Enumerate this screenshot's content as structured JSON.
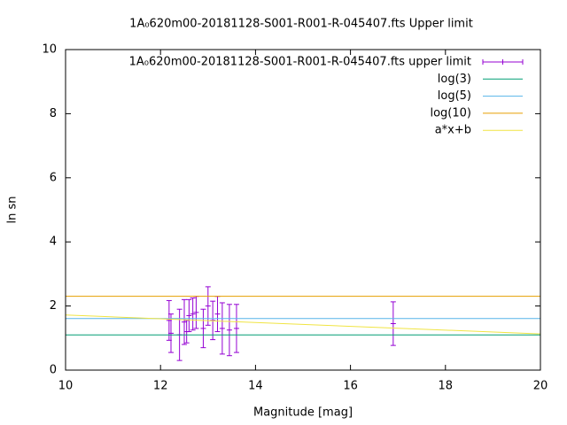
{
  "chart_data": {
    "type": "errorbar",
    "title": "1A₀620m00-20181128-S001-R001-R-045407.fts Upper limit",
    "xlabel": "Magnitude [mag]",
    "ylabel": "ln sn",
    "xlim": [
      10,
      20
    ],
    "ylim": [
      0,
      10
    ],
    "xticks": [
      10,
      12,
      14,
      16,
      18,
      20
    ],
    "yticks": [
      0,
      2,
      4,
      6,
      8,
      10
    ],
    "legend": "top right",
    "series": [
      {
        "name": "1A₀620m00-20181128-S001-R001-R-045407.fts upper limit",
        "color": "#9400d3",
        "type": "errorbar",
        "x": [
          12.18,
          12.22,
          12.4,
          12.5,
          12.55,
          12.6,
          12.68,
          12.75,
          12.9,
          13.0,
          13.1,
          13.2,
          13.3,
          13.45,
          13.6,
          16.9
        ],
        "values": [
          1.55,
          1.15,
          1.1,
          1.5,
          1.2,
          1.7,
          1.75,
          1.8,
          1.3,
          2.0,
          1.55,
          1.75,
          1.3,
          1.25,
          1.3,
          1.45
        ],
        "errors": [
          0.62,
          0.6,
          0.8,
          0.7,
          0.35,
          0.5,
          0.5,
          0.5,
          0.6,
          0.6,
          0.6,
          0.55,
          0.8,
          0.8,
          0.75,
          0.68
        ]
      },
      {
        "name": "log(3)",
        "color": "#009e73",
        "type": "line",
        "x": [
          10,
          20
        ],
        "values": [
          1.0986,
          1.0986
        ]
      },
      {
        "name": "log(5)",
        "color": "#56b4e9",
        "type": "line",
        "x": [
          10,
          20
        ],
        "values": [
          1.6094,
          1.6094
        ]
      },
      {
        "name": "log(10)",
        "color": "#e69f00",
        "type": "line",
        "x": [
          10,
          20
        ],
        "values": [
          2.3026,
          2.3026
        ]
      },
      {
        "name": "a*x+b",
        "color": "#f0e442",
        "type": "line",
        "x": [
          10,
          20
        ],
        "values": [
          1.72,
          1.13
        ]
      }
    ]
  }
}
